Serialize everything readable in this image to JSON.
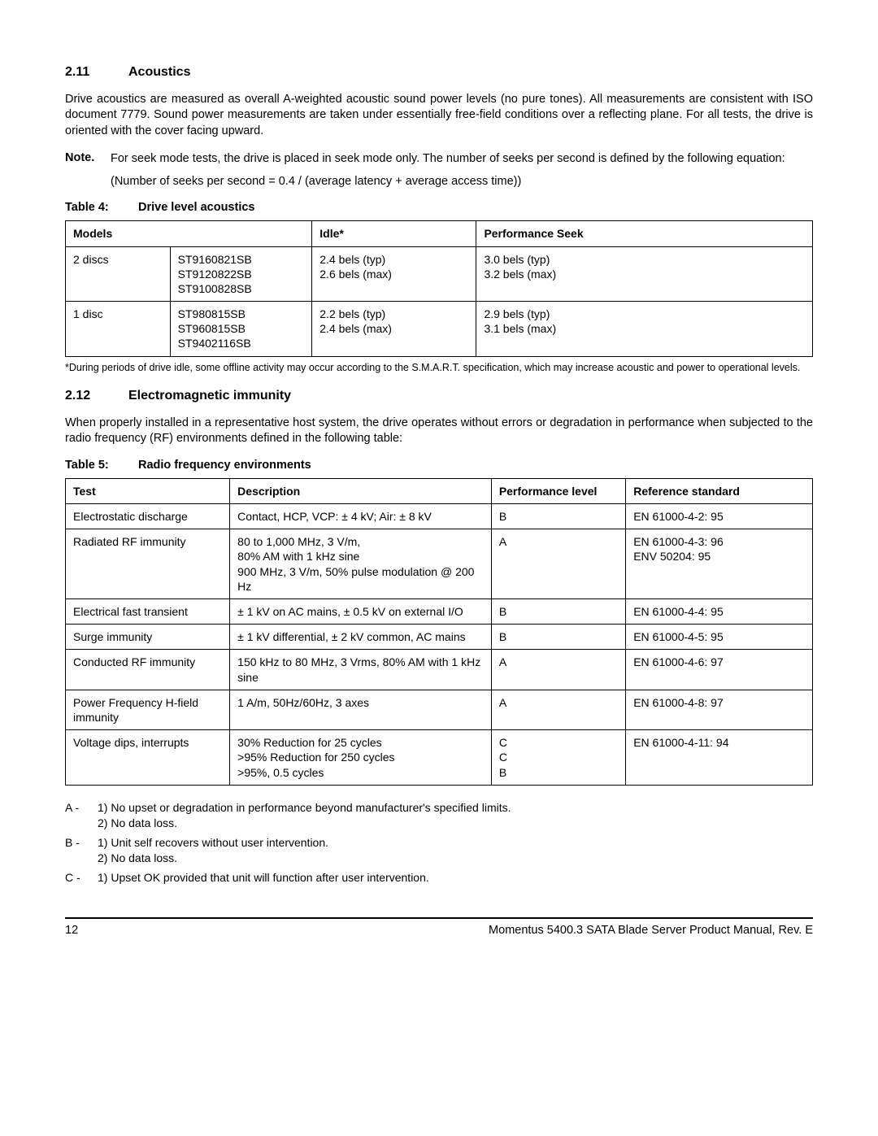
{
  "section211": {
    "number": "2.11",
    "title": "Acoustics",
    "para": "Drive acoustics are measured as overall A-weighted acoustic sound power levels (no pure tones). All measurements are consistent with ISO document 7779. Sound power measurements are taken under essentially free-field conditions over a reflecting plane. For all tests, the drive is oriented with the cover facing upward.",
    "note_label": "Note.",
    "note_text": "For seek mode tests, the drive is placed in seek mode only. The number of seeks per second is defined by the following equation:",
    "note_eq": "(Number of seeks per second = 0.4 / (average latency + average access time))"
  },
  "table4": {
    "caption_label": "Table 4:",
    "caption_title": "Drive level acoustics",
    "headers": [
      "Models",
      "",
      "Idle*",
      "Performance Seek"
    ],
    "rows": [
      [
        "2 discs",
        "ST9160821SB\nST9120822SB\nST9100828SB",
        "2.4 bels (typ)\n2.6 bels (max)",
        "3.0 bels (typ)\n3.2 bels (max)"
      ],
      [
        "1 disc",
        "ST980815SB\nST960815SB\nST9402116SB",
        "2.2 bels (typ)\n2.4 bels (max)",
        "2.9 bels (typ)\n3.1 bels (max)"
      ]
    ],
    "col1_width": "14%",
    "col2_width": "19%",
    "col3_width": "22%",
    "col4_width": "45%",
    "footnote": "*During periods of drive idle, some offline activity may occur according to the S.M.A.R.T. specification, which may increase acoustic and power to operational levels."
  },
  "section212": {
    "number": "2.12",
    "title": "Electromagnetic immunity",
    "para": "When properly installed in a representative host system, the drive operates without errors or degradation in performance when subjected to the radio frequency (RF) environments defined in the following table:"
  },
  "table5": {
    "caption_label": "Table 5:",
    "caption_title": "Radio frequency environments",
    "headers": [
      "Test",
      "Description",
      "Performance level",
      "Reference standard"
    ],
    "col_widths": [
      "22%",
      "35%",
      "18%",
      "25%"
    ],
    "rows": [
      [
        "Electrostatic discharge",
        "Contact, HCP, VCP: ± 4 kV; Air: ± 8 kV",
        "B",
        "EN 61000-4-2: 95"
      ],
      [
        "Radiated RF immunity",
        "80 to 1,000 MHz, 3 V/m,\n80% AM with 1 kHz sine\n900 MHz, 3 V/m, 50% pulse modulation @ 200 Hz",
        "A",
        "EN 61000-4-3: 96\nENV 50204: 95"
      ],
      [
        "Electrical fast transient",
        "± 1 kV on AC mains, ± 0.5 kV on external I/O",
        "B",
        "EN 61000-4-4: 95"
      ],
      [
        "Surge immunity",
        "± 1 kV differential, ± 2 kV common, AC mains",
        "B",
        "EN 61000-4-5: 95"
      ],
      [
        "Conducted RF immunity",
        "150 kHz to 80 MHz, 3 Vrms, 80% AM with 1 kHz sine",
        "A",
        "EN 61000-4-6: 97"
      ],
      [
        "Power Frequency H-field immunity",
        "1 A/m, 50Hz/60Hz, 3 axes",
        "A",
        "EN 61000-4-8: 97"
      ],
      [
        "Voltage dips, interrupts",
        "30% Reduction for 25 cycles\n>95% Reduction for 250 cycles\n>95%, 0.5 cycles",
        "C\nC\nB",
        "EN 61000-4-11: 94"
      ]
    ]
  },
  "level_defs": [
    {
      "lvl": "A -",
      "txt": "1) No upset or degradation in performance beyond manufacturer's specified limits.\n2) No data loss."
    },
    {
      "lvl": "B -",
      "txt": "1) Unit self recovers without user intervention.\n2) No data loss."
    },
    {
      "lvl": "C -",
      "txt": "1) Upset OK provided that unit will function after user intervention."
    }
  ],
  "footer": {
    "page": "12",
    "title": "Momentus 5400.3 SATA Blade Server Product Manual, Rev. E"
  }
}
